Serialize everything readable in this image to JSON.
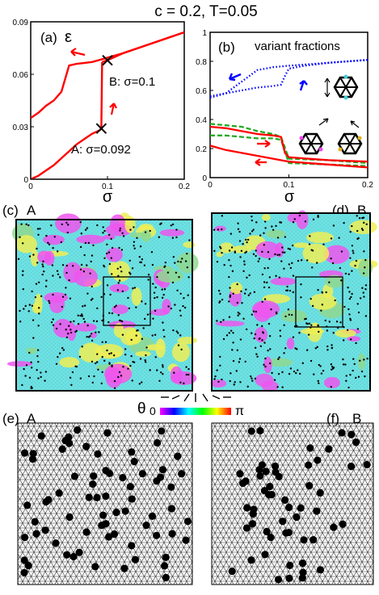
{
  "header": {
    "title": "c = 0.2, T=0.05"
  },
  "panel_a": {
    "label": "(a)",
    "ylabel": "ε",
    "xlabel": "σ",
    "xticks": [
      "0",
      "0.1",
      "0.2"
    ],
    "yticks": [
      "0",
      "0.03",
      "0.06",
      "0.09"
    ],
    "ann_A": "A: σ=0.092",
    "ann_B": "B: σ=0.1"
  },
  "panel_b": {
    "label": "(b)",
    "title": "variant fractions",
    "xlabel": "σ",
    "xticks": [
      "0",
      "0.1",
      "0.2"
    ],
    "yticks": [
      "0",
      "0.2",
      "0.4",
      "0.6",
      "0.8",
      "1"
    ]
  },
  "panel_c": {
    "label": "(c)",
    "state": "A"
  },
  "panel_d": {
    "label": "(d)",
    "state": "B"
  },
  "panel_e": {
    "label": "(e)",
    "state": "A"
  },
  "panel_f": {
    "label": "(f)",
    "state": "B"
  },
  "colorbar": {
    "symbol": "θ",
    "min": "0",
    "max": "π",
    "colors": [
      "#ff00ff",
      "#0000ff",
      "#00ffff",
      "#00ff00",
      "#ffff00",
      "#ff0000"
    ]
  },
  "colors": {
    "red": "#ff0000",
    "blue": "#0000ff",
    "green": "#22aa22",
    "cyan": "#6fe3e3",
    "magenta": "#ee55ee",
    "yellow": "#eeee55"
  },
  "chart_data": [
    {
      "type": "line",
      "title": "(a)",
      "xlabel": "σ",
      "ylabel": "ε",
      "xlim": [
        0,
        0.2
      ],
      "ylim": [
        0,
        0.09
      ],
      "series": [
        {
          "x": [
            0,
            0.01,
            0.02,
            0.03,
            0.04,
            0.05,
            0.06,
            0.07,
            0.08,
            0.09,
            0.092
          ],
          "y": [
            0,
            0.002,
            0.005,
            0.008,
            0.012,
            0.016,
            0.02,
            0.023,
            0.026,
            0.028,
            0.029
          ]
        },
        {
          "x": [
            0.092,
            0.093
          ],
          "y": [
            0.029,
            0.067
          ]
        },
        {
          "x": [
            0.093,
            0.1,
            0.12,
            0.14,
            0.16,
            0.18,
            0.2
          ],
          "y": [
            0.067,
            0.068,
            0.072,
            0.075,
            0.078,
            0.081,
            0.084
          ]
        },
        {
          "x": [
            0.2,
            0.16,
            0.12,
            0.08,
            0.06,
            0.05,
            0.04,
            0.03,
            0.02,
            0.01,
            0
          ],
          "y": [
            0.084,
            0.078,
            0.072,
            0.067,
            0.066,
            0.065,
            0.05,
            0.045,
            0.042,
            0.038,
            0.035
          ]
        }
      ],
      "markers": [
        {
          "x": 0.092,
          "y": 0.029,
          "label": "A: σ=0.092"
        },
        {
          "x": 0.1,
          "y": 0.068,
          "label": "B: σ=0.1"
        }
      ]
    },
    {
      "type": "line",
      "title": "variant fractions",
      "xlabel": "σ",
      "xlim": [
        0,
        0.2
      ],
      "ylim": [
        0,
        1
      ],
      "series": [
        {
          "color": "#0000ff",
          "style": "dotted",
          "x": [
            0,
            0.02,
            0.04,
            0.06,
            0.08,
            0.09,
            0.095,
            0.1,
            0.12,
            0.15,
            0.2
          ],
          "y": [
            0.56,
            0.58,
            0.6,
            0.62,
            0.63,
            0.64,
            0.7,
            0.75,
            0.77,
            0.79,
            0.81
          ]
        },
        {
          "color": "#0000ff",
          "style": "dotted",
          "x": [
            0,
            0.02,
            0.04,
            0.06,
            0.08,
            0.1,
            0.15,
            0.2
          ],
          "y": [
            0.55,
            0.58,
            0.66,
            0.74,
            0.76,
            0.77,
            0.79,
            0.81
          ]
        },
        {
          "color": "#22aa22",
          "style": "dashed",
          "x": [
            0,
            0.02,
            0.04,
            0.06,
            0.08,
            0.09,
            0.1,
            0.15,
            0.2
          ],
          "y": [
            0.37,
            0.36,
            0.35,
            0.32,
            0.3,
            0.28,
            0.13,
            0.12,
            0.1
          ]
        },
        {
          "color": "#22aa22",
          "style": "dashed",
          "x": [
            0,
            0.02,
            0.04,
            0.06,
            0.08,
            0.09,
            0.1,
            0.15,
            0.2
          ],
          "y": [
            0.29,
            0.29,
            0.28,
            0.27,
            0.27,
            0.26,
            0.1,
            0.09,
            0.08
          ]
        },
        {
          "color": "#ff0000",
          "style": "solid",
          "x": [
            0,
            0.02,
            0.04,
            0.06,
            0.08,
            0.09,
            0.095,
            0.1,
            0.15,
            0.2
          ],
          "y": [
            0.35,
            0.34,
            0.32,
            0.3,
            0.29,
            0.28,
            0.17,
            0.14,
            0.12,
            0.11
          ]
        },
        {
          "color": "#ff0000",
          "style": "solid",
          "x": [
            0,
            0.02,
            0.04,
            0.06,
            0.08,
            0.1,
            0.15,
            0.2
          ],
          "y": [
            0.22,
            0.19,
            0.17,
            0.15,
            0.13,
            0.11,
            0.09,
            0.07
          ]
        }
      ]
    }
  ]
}
